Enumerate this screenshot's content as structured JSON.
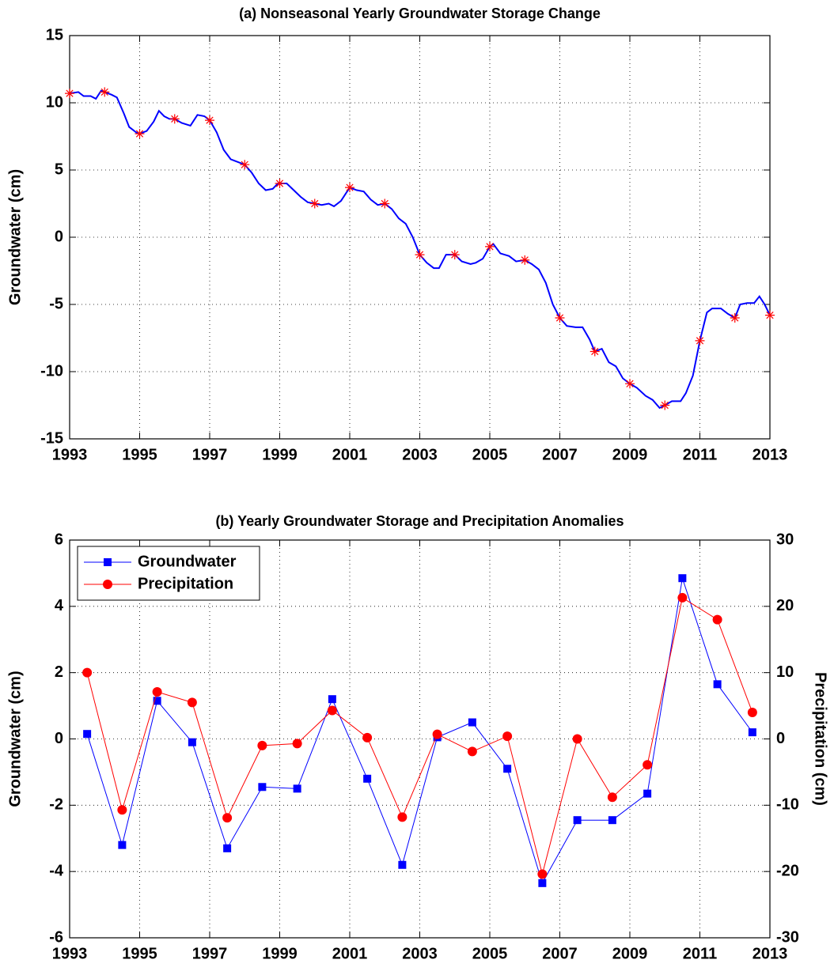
{
  "chart_data": [
    {
      "type": "line",
      "title": "(a) Nonseasonal Yearly Groundwater Storage Change",
      "ylabel": "Groundwater (cm)",
      "xlim": [
        1993,
        2013
      ],
      "xticks": [
        1993,
        1995,
        1997,
        1999,
        2001,
        2003,
        2005,
        2007,
        2009,
        2011,
        2013
      ],
      "ylim": [
        -15,
        15
      ],
      "yticks": [
        -15,
        -10,
        -5,
        0,
        5,
        10,
        15
      ],
      "grid": true,
      "series": [
        {
          "color": "#0000ff",
          "marker": "none",
          "line": true,
          "x": [
            1993.0,
            1993.25,
            1993.4,
            1993.6,
            1993.75,
            1993.9,
            1994.0,
            1994.2,
            1994.35,
            1994.55,
            1994.7,
            1994.9,
            1995.0,
            1995.2,
            1995.4,
            1995.55,
            1995.7,
            1995.85,
            1996.0,
            1996.2,
            1996.45,
            1996.65,
            1996.85,
            1997.0,
            1997.2,
            1997.4,
            1997.6,
            1997.8,
            1998.0,
            1998.2,
            1998.4,
            1998.6,
            1998.8,
            1998.95,
            1999.2,
            1999.4,
            1999.6,
            1999.8,
            2000.0,
            2000.2,
            2000.4,
            2000.55,
            2000.75,
            2001.0,
            2001.2,
            2001.4,
            2001.6,
            2001.8,
            2002.0,
            2002.2,
            2002.4,
            2002.6,
            2002.8,
            2003.0,
            2003.2,
            2003.4,
            2003.55,
            2003.75,
            2004.0,
            2004.2,
            2004.45,
            2004.6,
            2004.8,
            2005.0,
            2005.1,
            2005.3,
            2005.55,
            2005.75,
            2006.0,
            2006.2,
            2006.4,
            2006.6,
            2006.8,
            2007.0,
            2007.2,
            2007.45,
            2007.65,
            2007.85,
            2008.0,
            2008.2,
            2008.4,
            2008.6,
            2008.8,
            2009.0,
            2009.2,
            2009.45,
            2009.65,
            2009.85,
            2010.0,
            2010.2,
            2010.45,
            2010.6,
            2010.8,
            2011.0,
            2011.2,
            2011.35,
            2011.6,
            2011.8,
            2012.0,
            2012.15,
            2012.35,
            2012.55,
            2012.7,
            2012.85,
            2013.0
          ],
          "values": [
            10.7,
            10.8,
            10.5,
            10.5,
            10.3,
            10.9,
            10.8,
            10.6,
            10.4,
            9.2,
            8.2,
            7.8,
            7.7,
            7.9,
            8.6,
            9.4,
            9.0,
            8.8,
            8.8,
            8.5,
            8.3,
            9.1,
            9.0,
            8.7,
            7.8,
            6.5,
            5.8,
            5.6,
            5.4,
            4.8,
            4.0,
            3.5,
            3.6,
            4.0,
            4.0,
            3.5,
            3.0,
            2.6,
            2.5,
            2.4,
            2.5,
            2.3,
            2.7,
            3.7,
            3.5,
            3.4,
            2.8,
            2.4,
            2.5,
            2.1,
            1.4,
            1.0,
            0.0,
            -1.3,
            -1.9,
            -2.3,
            -2.3,
            -1.3,
            -1.3,
            -1.8,
            -2.0,
            -1.9,
            -1.6,
            -0.7,
            -0.5,
            -1.2,
            -1.4,
            -1.8,
            -1.7,
            -2.0,
            -2.4,
            -3.4,
            -5.0,
            -6.0,
            -6.6,
            -6.7,
            -6.7,
            -7.6,
            -8.5,
            -8.3,
            -9.3,
            -9.6,
            -10.5,
            -10.9,
            -11.2,
            -11.8,
            -12.1,
            -12.7,
            -12.5,
            -12.2,
            -12.2,
            -11.6,
            -10.3,
            -7.7,
            -5.6,
            -5.3,
            -5.3,
            -5.7,
            -6.0,
            -5.0,
            -4.9,
            -4.9,
            -4.4,
            -5.0,
            -5.8
          ]
        },
        {
          "color": "#ff0000",
          "marker": "asterisk",
          "line": false,
          "x": [
            1993,
            1994,
            1995,
            1996,
            1997,
            1998,
            1999,
            2000,
            2001,
            2002,
            2003,
            2004,
            2005,
            2006,
            2007,
            2008,
            2009,
            2010,
            2011,
            2012,
            2013
          ],
          "values": [
            10.7,
            10.8,
            7.7,
            8.8,
            8.7,
            5.4,
            4.0,
            2.5,
            3.7,
            2.5,
            -1.3,
            -1.3,
            -0.7,
            -1.7,
            -6.0,
            -8.5,
            -10.9,
            -12.5,
            -7.7,
            -6.0,
            -5.8
          ]
        }
      ]
    },
    {
      "type": "line",
      "title": "(b) Yearly Groundwater Storage and Precipitation Anomalies",
      "ylabel": "Groundwater (cm)",
      "y2label": "Precipitation (cm)",
      "xlim": [
        1993,
        2013
      ],
      "xticks": [
        1993,
        1995,
        1997,
        1999,
        2001,
        2003,
        2005,
        2007,
        2009,
        2011,
        2013
      ],
      "ylim": [
        -6,
        6
      ],
      "yticks": [
        -6,
        -4,
        -2,
        0,
        2,
        4,
        6
      ],
      "y2lim": [
        -30,
        30
      ],
      "y2ticks": [
        -30,
        -20,
        -10,
        0,
        10,
        20,
        30
      ],
      "grid": true,
      "legend": "northwest",
      "series": [
        {
          "name": "Groundwater",
          "color": "#0000ff",
          "marker": "square",
          "line": true,
          "x": [
            1993.5,
            1994.5,
            1995.5,
            1996.5,
            1997.5,
            1998.5,
            1999.5,
            2000.5,
            2001.5,
            2002.5,
            2003.5,
            2004.5,
            2005.5,
            2006.5,
            2007.5,
            2008.5,
            2009.5,
            2010.5,
            2011.5,
            2012.5
          ],
          "values": [
            0.15,
            -3.2,
            1.15,
            -0.1,
            -3.3,
            -1.45,
            -1.5,
            1.2,
            -1.2,
            -3.8,
            0.05,
            0.5,
            -0.9,
            -4.35,
            -2.45,
            -2.45,
            -1.65,
            4.85,
            1.65,
            0.2
          ]
        },
        {
          "name": "Precipitation",
          "color": "#ff0000",
          "marker": "circle",
          "line": true,
          "axis": "y2",
          "x": [
            1993.5,
            1994.5,
            1995.5,
            1996.5,
            1997.5,
            1998.5,
            1999.5,
            2000.5,
            2001.5,
            2002.5,
            2003.5,
            2004.5,
            2005.5,
            2006.5,
            2007.5,
            2008.5,
            2009.5,
            2010.5,
            2011.5,
            2012.5
          ],
          "values": [
            10.0,
            -10.7,
            7.1,
            5.5,
            -11.9,
            -1.0,
            -0.7,
            4.3,
            0.2,
            -11.8,
            0.7,
            -1.9,
            0.4,
            -20.4,
            0.0,
            -8.8,
            -3.9,
            21.3,
            18.0,
            4.0
          ]
        }
      ]
    }
  ]
}
